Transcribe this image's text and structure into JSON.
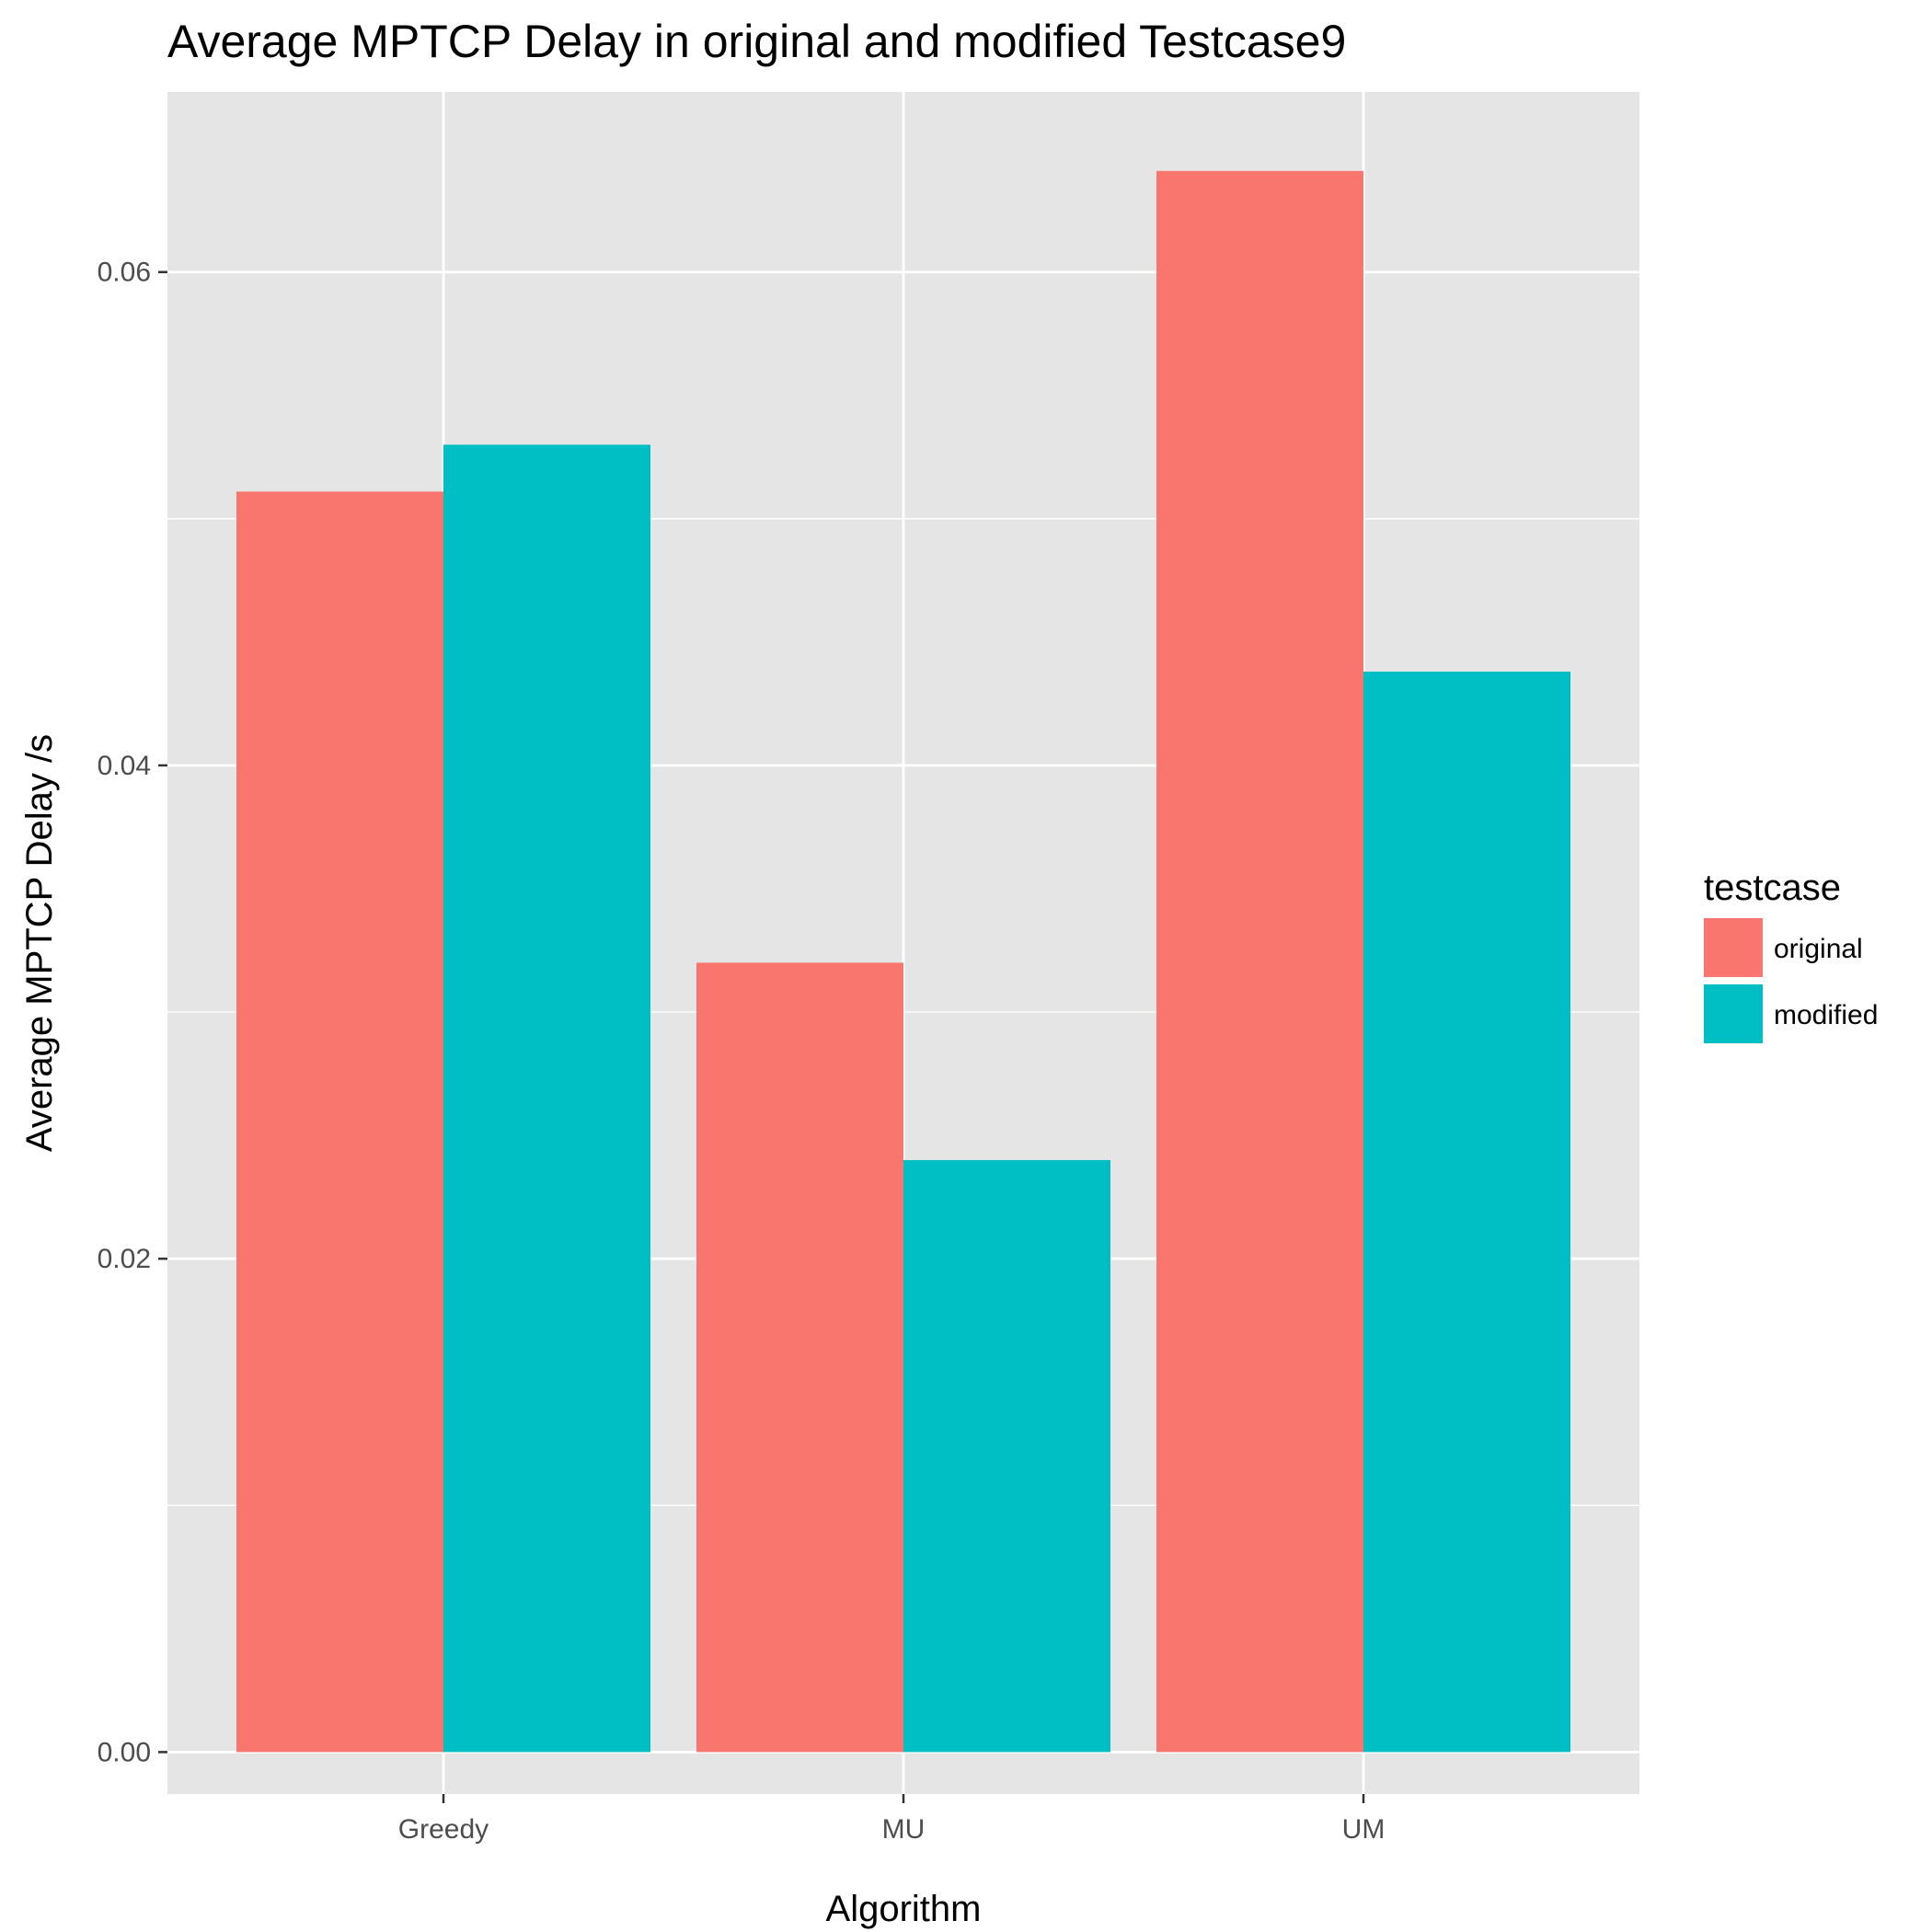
{
  "chart_data": {
    "type": "bar",
    "title": "Average MPTCP Delay in original and modified Testcase9",
    "xlabel": "Algorithm",
    "ylabel": "Average MPTCP Delay /s",
    "categories": [
      "Greedy",
      "MU",
      "UM"
    ],
    "series": [
      {
        "name": "original",
        "color": "#F8766D",
        "values": [
          0.0511,
          0.032,
          0.0641
        ]
      },
      {
        "name": "modified",
        "color": "#00BFC4",
        "values": [
          0.053,
          0.024,
          0.0438
        ]
      }
    ],
    "yticks": [
      0.0,
      0.02,
      0.04,
      0.06
    ],
    "ytick_labels": [
      "0.00",
      "0.02",
      "0.04",
      "0.06"
    ],
    "ylim": [
      -0.0017,
      0.0673
    ],
    "grid": true,
    "legend": {
      "title": "testcase",
      "placement": "right"
    },
    "colors": {
      "panel_background": "#E5E5E5",
      "grid": "#FFFFFF",
      "tick_label": "#4D4D4D",
      "tick_mark": "#333333"
    }
  }
}
